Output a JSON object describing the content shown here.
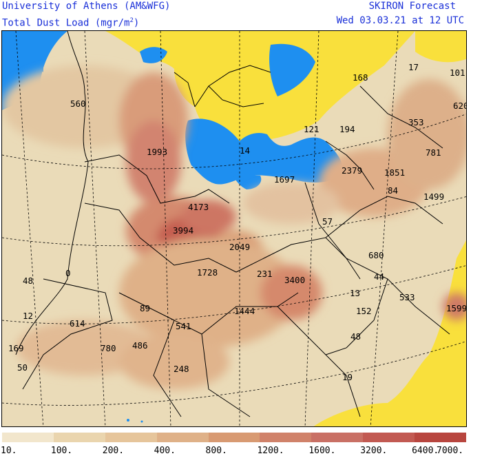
{
  "header": {
    "org": "University of Athens (AM&WFG)",
    "field_prefix": "Total Dust Load (mgr/m",
    "field_sup": "2",
    "field_suffix": ")",
    "model": "SKIRON Forecast",
    "valid_time": "Wed 03.03.21 at 12 UTC"
  },
  "colors": {
    "sea": "#1e8ff0",
    "no_dust_land": "#f9e03c",
    "text": "#1a30d8"
  },
  "legend": {
    "levels": [
      "10.",
      "100.",
      "200.",
      "400.",
      "800.",
      "1200.",
      "1600.",
      "3200.",
      "6400.",
      "7000."
    ],
    "colors": [
      "#f2e6cc",
      "#ead5ae",
      "#e6c59b",
      "#dfb188",
      "#d89a72",
      "#d0826a",
      "#c97065",
      "#c25a52",
      "#b8463f"
    ]
  },
  "values": [
    {
      "id": "v560",
      "text": "560"
    },
    {
      "id": "v1993",
      "text": "1993"
    },
    {
      "id": "v14",
      "text": "14"
    },
    {
      "id": "v168",
      "text": "168"
    },
    {
      "id": "v17",
      "text": "17"
    },
    {
      "id": "v101",
      "text": "101"
    },
    {
      "id": "v620",
      "text": "620"
    },
    {
      "id": "v353",
      "text": "353"
    },
    {
      "id": "v121",
      "text": "121"
    },
    {
      "id": "v194",
      "text": "194"
    },
    {
      "id": "v781",
      "text": "781"
    },
    {
      "id": "v1697",
      "text": "1697"
    },
    {
      "id": "v2379",
      "text": "2379"
    },
    {
      "id": "v1851",
      "text": "1851"
    },
    {
      "id": "v84",
      "text": "84"
    },
    {
      "id": "v1499",
      "text": "1499"
    },
    {
      "id": "v4173",
      "text": "4173"
    },
    {
      "id": "v3994",
      "text": "3994"
    },
    {
      "id": "v57",
      "text": "57"
    },
    {
      "id": "v2049",
      "text": "2049"
    },
    {
      "id": "v680",
      "text": "680"
    },
    {
      "id": "v48a",
      "text": "48"
    },
    {
      "id": "v0",
      "text": "0"
    },
    {
      "id": "v1728",
      "text": "1728"
    },
    {
      "id": "v231",
      "text": "231"
    },
    {
      "id": "v3400",
      "text": "3400"
    },
    {
      "id": "v44",
      "text": "44"
    },
    {
      "id": "v13",
      "text": "13"
    },
    {
      "id": "v533",
      "text": "533"
    },
    {
      "id": "v12",
      "text": "12"
    },
    {
      "id": "v89",
      "text": "89"
    },
    {
      "id": "v1444",
      "text": "1444"
    },
    {
      "id": "v152",
      "text": "152"
    },
    {
      "id": "v1599",
      "text": "1599"
    },
    {
      "id": "v614",
      "text": "614"
    },
    {
      "id": "v541",
      "text": "541"
    },
    {
      "id": "v48b",
      "text": "48"
    },
    {
      "id": "v169",
      "text": "169"
    },
    {
      "id": "v780",
      "text": "780"
    },
    {
      "id": "v486",
      "text": "486"
    },
    {
      "id": "v50",
      "text": "50"
    },
    {
      "id": "v248",
      "text": "248"
    },
    {
      "id": "v19",
      "text": "19"
    }
  ]
}
